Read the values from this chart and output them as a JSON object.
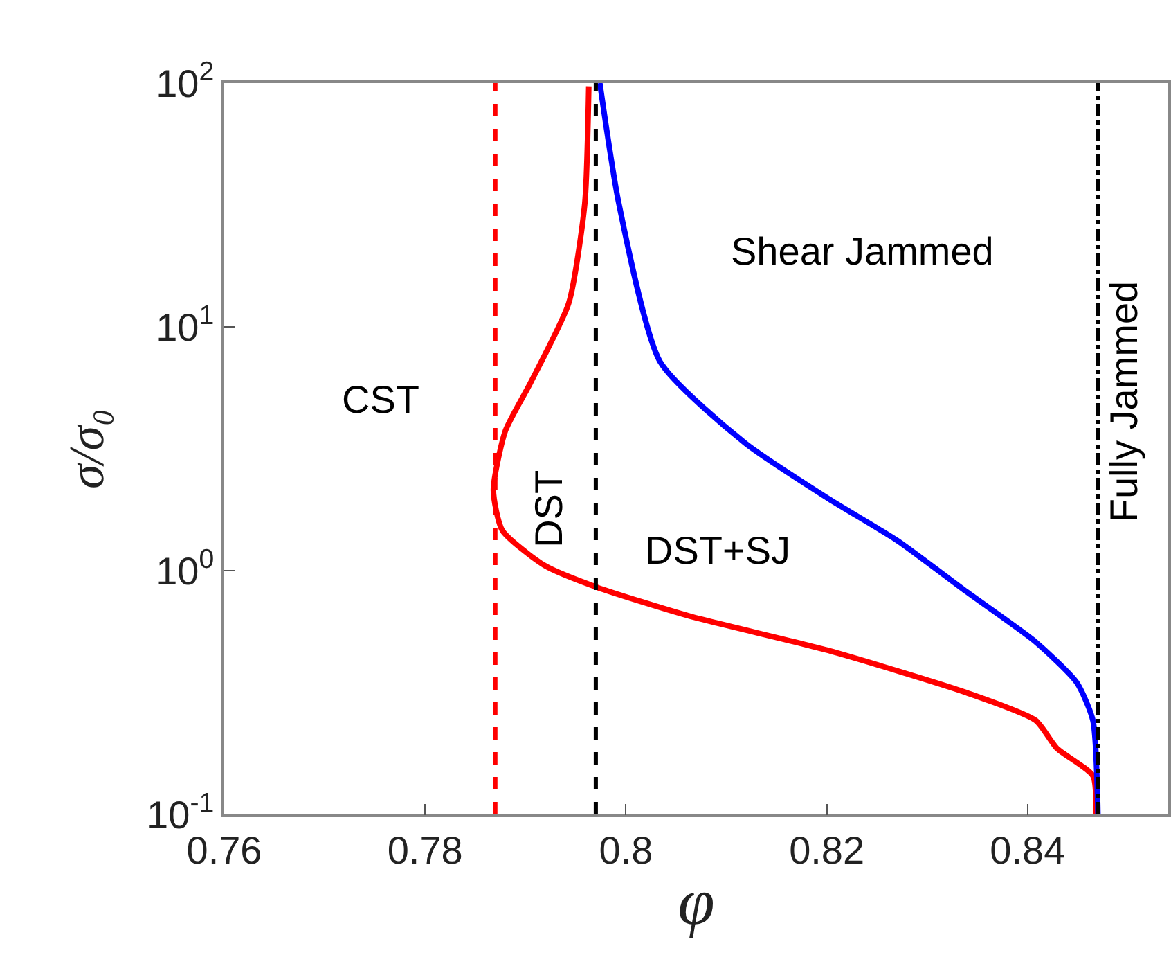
{
  "chart_data": {
    "type": "line",
    "xlabel": "φ",
    "ylabel": "σ/σ₀",
    "log": "y",
    "xlim": [
      0.76,
      0.854
    ],
    "xticks": [
      0.76,
      0.78,
      0.8,
      0.82,
      0.84
    ],
    "ylim": [
      0.1,
      100
    ],
    "yticks": [
      {
        "value": 0.1,
        "label": "10$^{-1}$"
      },
      {
        "value": 1,
        "label": "10$^{0}$"
      },
      {
        "value": 10,
        "label": "10$^{1}$"
      },
      {
        "value": 100,
        "label": "10$^{2}$"
      }
    ],
    "marker": "none",
    "line_style": "solid",
    "series": [
      {
        "color": "#ff0000",
        "x": [
          0.7963,
          0.7959,
          0.7943,
          0.7905,
          0.788,
          0.7868,
          0.7877,
          0.7919,
          0.7971,
          0.8064,
          0.8202,
          0.8339,
          0.8408,
          0.8429,
          0.8465,
          0.8468
        ],
        "values": [
          97,
          32,
          12.5,
          5.9,
          3.75,
          2.14,
          1.46,
          1.05,
          0.855,
          0.65,
          0.47,
          0.316,
          0.243,
          0.187,
          0.144,
          0.1
        ]
      },
      {
        "color": "#0000ff",
        "x": [
          0.7974,
          0.7993,
          0.8034,
          0.8119,
          0.8202,
          0.827,
          0.8339,
          0.8408,
          0.8449,
          0.8465,
          0.847
        ],
        "values": [
          100,
          32,
          7.2,
          3.33,
          1.97,
          1.33,
          0.82,
          0.51,
          0.347,
          0.243,
          0.1
        ]
      }
    ],
    "ref_lines": [
      {
        "axis": "x",
        "value": 0.787,
        "color": "#ff0000",
        "line_style": "dashed"
      },
      {
        "axis": "x",
        "value": 0.797,
        "color": "#000000",
        "line_style": "dashed"
      },
      {
        "axis": "x",
        "value": 0.847,
        "color": "#000000",
        "line_style": "dashdot"
      }
    ],
    "annotations": [
      "CST",
      "DST",
      "DST+SJ",
      "Shear Jammed",
      "Fully Jammed"
    ]
  }
}
